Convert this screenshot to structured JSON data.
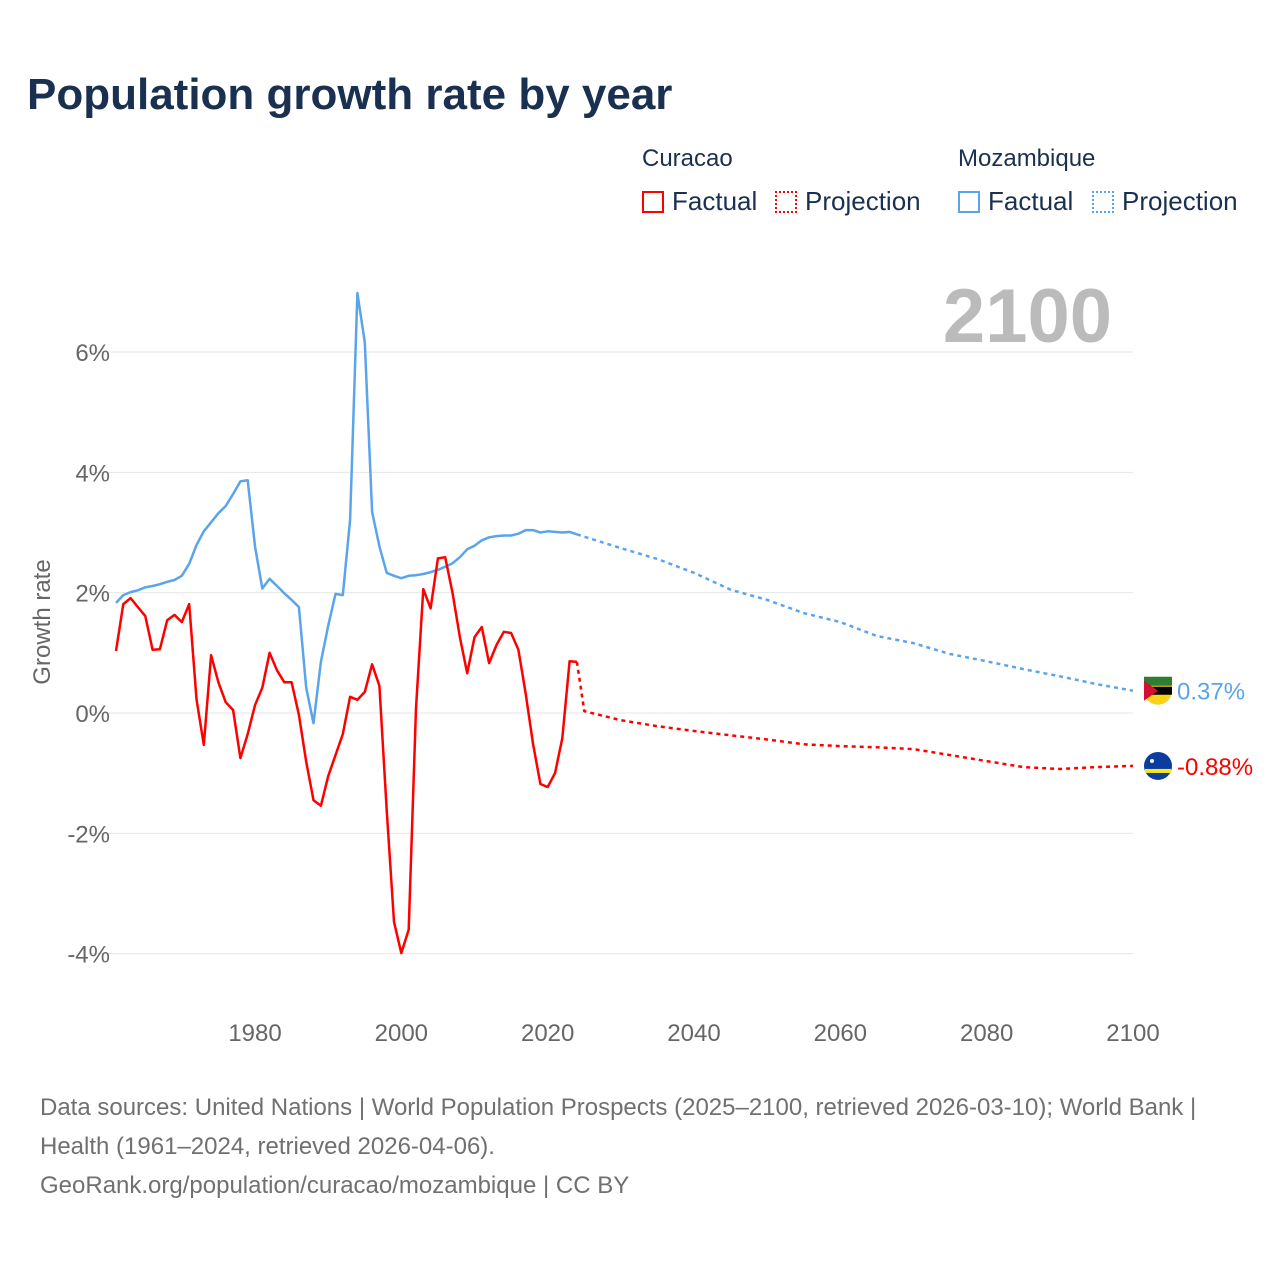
{
  "title": "Population growth rate by year",
  "legend": {
    "groups": [
      {
        "name": "Curacao",
        "factual": "Factual",
        "projection": "Projection",
        "color": "#ff0000"
      },
      {
        "name": "Mozambique",
        "factual": "Factual",
        "projection": "Projection",
        "color": "#5aa5ea"
      }
    ]
  },
  "year_label": "2100",
  "footer": {
    "sources": "Data sources: United Nations | World Population Prospects (2025–2100, retrieved 2026-03-10); World Bank | Health (1961–2024, retrieved 2026-04-06).",
    "credit": "GeoRank.org/population/curacao/mozambique | CC BY"
  },
  "chart_data": {
    "type": "line",
    "title": "Population growth rate by year",
    "xlabel": "",
    "ylabel": "Growth rate",
    "xlim": [
      1961,
      2100
    ],
    "ylim": [
      -4,
      6
    ],
    "x_ticks": [
      1980,
      2000,
      2020,
      2040,
      2060,
      2080,
      2100
    ],
    "y_ticks": [
      {
        "v": 6,
        "label": "6%"
      },
      {
        "v": 4,
        "label": "4%"
      },
      {
        "v": 2,
        "label": "2%"
      },
      {
        "v": 0,
        "label": "0%"
      },
      {
        "v": -2,
        "label": "-2%"
      },
      {
        "v": -4,
        "label": "-4%"
      }
    ],
    "grid": true,
    "series": [
      {
        "name": "Mozambique",
        "kind": "Factual",
        "color": "#5aa5ea",
        "x_start": 1961,
        "values": [
          1.83,
          1.96,
          2.01,
          2.04,
          2.09,
          2.11,
          2.14,
          2.18,
          2.21,
          2.28,
          2.48,
          2.79,
          3.02,
          3.17,
          3.32,
          3.44,
          3.64,
          3.85,
          3.87,
          2.77,
          2.07,
          2.23,
          2.11,
          1.99,
          1.88,
          1.76,
          0.42,
          -0.17,
          0.85,
          1.45,
          1.98,
          1.96,
          3.21,
          6.98,
          6.16,
          3.34,
          2.77,
          2.33,
          2.28,
          2.24,
          2.28,
          2.29,
          2.31,
          2.34,
          2.38,
          2.43,
          2.49,
          2.59,
          2.72,
          2.78,
          2.87,
          2.92,
          2.94,
          2.95,
          2.95,
          2.98,
          3.04,
          3.04,
          3.0,
          3.02,
          3.01,
          3.0,
          3.01,
          2.97
        ]
      },
      {
        "name": "Mozambique",
        "kind": "Projection",
        "color": "#5aa5ea",
        "x": [
          2024,
          2025,
          2030,
          2035,
          2040,
          2045,
          2050,
          2055,
          2060,
          2065,
          2070,
          2075,
          2080,
          2085,
          2090,
          2095,
          2100
        ],
        "values": [
          2.97,
          2.93,
          2.74,
          2.56,
          2.33,
          2.05,
          1.88,
          1.66,
          1.51,
          1.28,
          1.16,
          0.98,
          0.86,
          0.73,
          0.61,
          0.48,
          0.37
        ]
      },
      {
        "name": "Curacao",
        "kind": "Factual",
        "color": "#ff0000",
        "x_start": 1961,
        "values": [
          1.03,
          1.81,
          1.91,
          1.76,
          1.61,
          1.05,
          1.06,
          1.54,
          1.63,
          1.51,
          1.81,
          0.23,
          -0.53,
          0.96,
          0.51,
          0.18,
          0.05,
          -0.75,
          -0.35,
          0.13,
          0.42,
          1.0,
          0.71,
          0.51,
          0.51,
          -0.03,
          -0.81,
          -1.45,
          -1.54,
          -1.05,
          -0.7,
          -0.35,
          0.27,
          0.22,
          0.35,
          0.81,
          0.45,
          -1.61,
          -3.47,
          -3.99,
          -3.6,
          0.08,
          2.06,
          1.74,
          2.57,
          2.59,
          1.99,
          1.26,
          0.66,
          1.26,
          1.43,
          0.83,
          1.13,
          1.35,
          1.33,
          1.05,
          0.32,
          -0.51,
          -1.18,
          -1.23,
          -1.0,
          -0.42,
          0.86,
          0.85
        ]
      },
      {
        "name": "Curacao",
        "kind": "Projection",
        "color": "#ff0000",
        "x": [
          2024,
          2025,
          2030,
          2035,
          2040,
          2045,
          2050,
          2055,
          2060,
          2065,
          2070,
          2075,
          2080,
          2085,
          2090,
          2095,
          2100
        ],
        "values": [
          0.85,
          0.03,
          -0.12,
          -0.22,
          -0.3,
          -0.37,
          -0.44,
          -0.52,
          -0.55,
          -0.57,
          -0.6,
          -0.7,
          -0.8,
          -0.9,
          -0.93,
          -0.9,
          -0.88
        ]
      }
    ],
    "end_labels": [
      {
        "country": "Mozambique",
        "label": "0.37%",
        "value": 0.37,
        "color": "#5aa5ea"
      },
      {
        "country": "Curacao",
        "label": "-0.88%",
        "value": -0.88,
        "color": "#ff0000"
      }
    ]
  }
}
